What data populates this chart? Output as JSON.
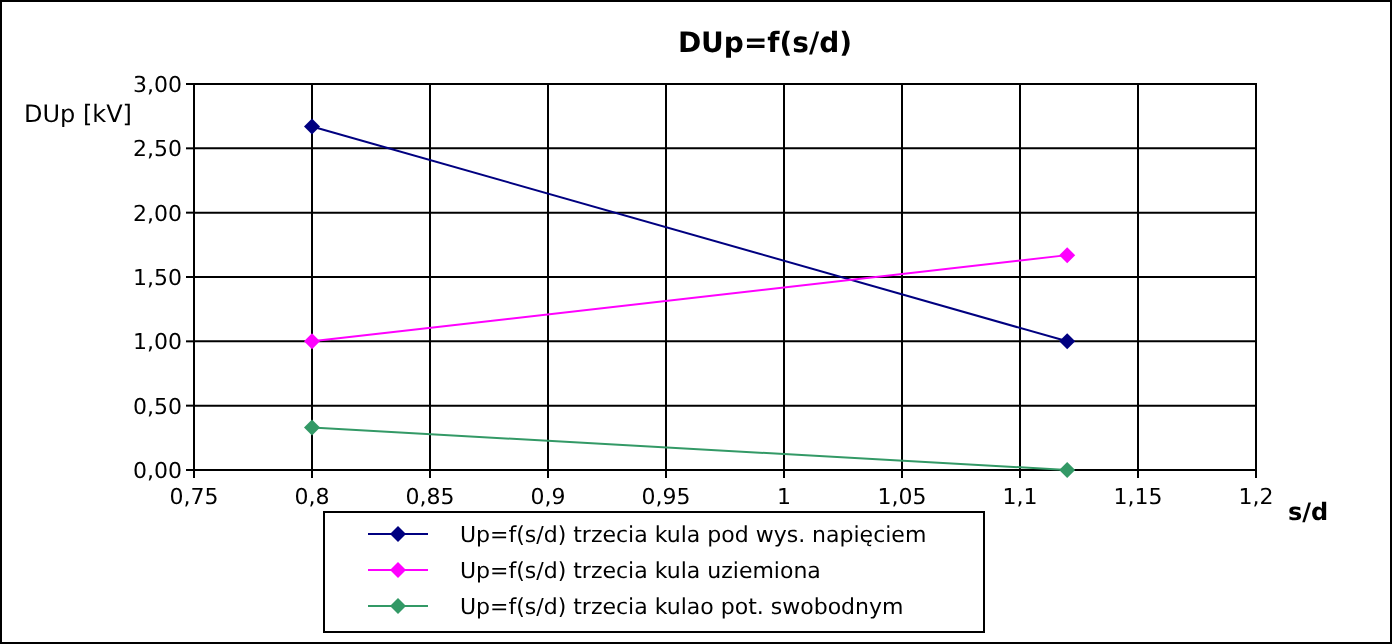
{
  "chart_data": {
    "type": "line",
    "title": "DUp=f(s/d)",
    "xlabel": "s/d",
    "ylabel": "DUp [kV]",
    "x": [
      0.8,
      1.12
    ],
    "series": [
      {
        "name": "Up=f(s/d) trzecia kula pod wys. napięciem",
        "color": "#000080",
        "values": [
          2.67,
          1.0
        ]
      },
      {
        "name": "Up=f(s/d) trzecia kula uziemiona",
        "color": "#ff00ff",
        "values": [
          1.0,
          1.67
        ]
      },
      {
        "name": "Up=f(s/d) trzecia kulao pot. swobodnym",
        "color": "#339966",
        "values": [
          0.33,
          0.0
        ]
      }
    ],
    "xlim": [
      0.75,
      1.2
    ],
    "xticks": [
      {
        "value": 0.75,
        "label": "0,75"
      },
      {
        "value": 0.8,
        "label": "0,8"
      },
      {
        "value": 0.85,
        "label": "0,85"
      },
      {
        "value": 0.9,
        "label": "0,9"
      },
      {
        "value": 0.95,
        "label": "0,95"
      },
      1,
      {
        "value": 1.05,
        "label": "1,05"
      },
      {
        "value": 1.1,
        "label": "1,1"
      },
      {
        "value": 1.15,
        "label": "1,15"
      },
      {
        "value": 1.2,
        "label": "1,2"
      }
    ],
    "ylim": [
      0,
      3
    ],
    "yticks": [
      {
        "value": 0,
        "label": "0,00"
      },
      {
        "value": 0.5,
        "label": "0,50"
      },
      {
        "value": 1,
        "label": "1,00"
      },
      {
        "value": 1.5,
        "label": "1,50"
      },
      {
        "value": 2,
        "label": "2,00"
      },
      {
        "value": 2.5,
        "label": "2,50"
      },
      {
        "value": 3,
        "label": "3,00"
      }
    ],
    "grid": true,
    "legend": "bottom",
    "marker": "diamond",
    "line_style": "solid"
  }
}
